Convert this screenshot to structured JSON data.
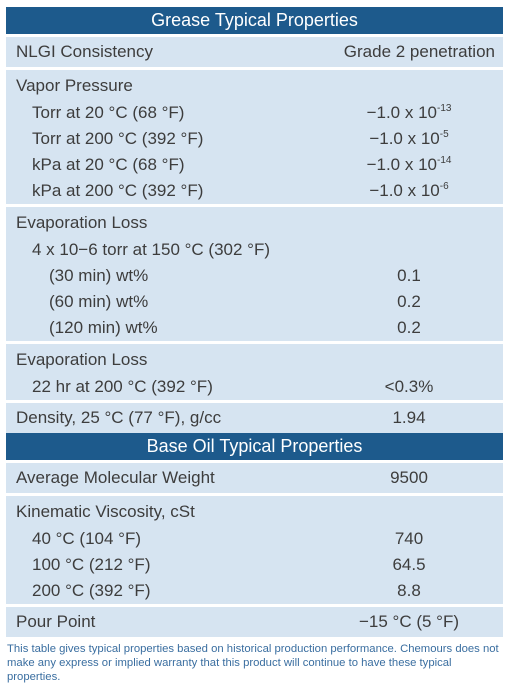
{
  "grease_header": "Grease Typical Properties",
  "nlgi": {
    "label": "NLGI Consistency",
    "value": "Grade 2 penetration"
  },
  "vapor": {
    "title": "Vapor Pressure",
    "rows": [
      {
        "label": "Torr at 20 °C (68 °F)",
        "base": "−1.0 x 10",
        "exp": "-13"
      },
      {
        "label": "Torr at 200 °C (392 °F)",
        "base": "−1.0 x 10",
        "exp": "-5"
      },
      {
        "label": "kPa at 20 °C (68 °F)",
        "base": "−1.0 x 10",
        "exp": "-14"
      },
      {
        "label": "kPa at 200 °C (392 °F)",
        "base": "−1.0 x 10",
        "exp": "-6"
      }
    ]
  },
  "evap1": {
    "title": "Evaporation Loss",
    "sub": "4 x 10−6 torr at 150 °C (302 °F)",
    "rows": [
      {
        "label": "(30 min) wt%",
        "value": "0.1"
      },
      {
        "label": "(60 min) wt%",
        "value": "0.2"
      },
      {
        "label": "(120 min) wt%",
        "value": "0.2"
      }
    ]
  },
  "evap2": {
    "title": "Evaporation Loss",
    "row": {
      "label": "22 hr at 200 °C (392 °F)",
      "value": "<0.3%"
    }
  },
  "density": {
    "label": "Density, 25 °C (77 °F), g/cc",
    "value": "1.94"
  },
  "base_header": "Base Oil Typical Properties",
  "mol_weight": {
    "label": "Average Molecular Weight",
    "value": "9500"
  },
  "viscosity": {
    "title": "Kinematic Viscosity, cSt",
    "rows": [
      {
        "label": "40 °C (104 °F)",
        "value": "740"
      },
      {
        "label": "100 °C (212 °F)",
        "value": "64.5"
      },
      {
        "label": "200 °C (392 °F)",
        "value": "8.8"
      }
    ]
  },
  "pour_point": {
    "label": "Pour Point",
    "value": "−15 °C (5 °F)"
  },
  "footnote": "This table gives typical properties based on historical production performance. Chemours does not make any express or implied warranty that this product will continue to have these typical properties."
}
